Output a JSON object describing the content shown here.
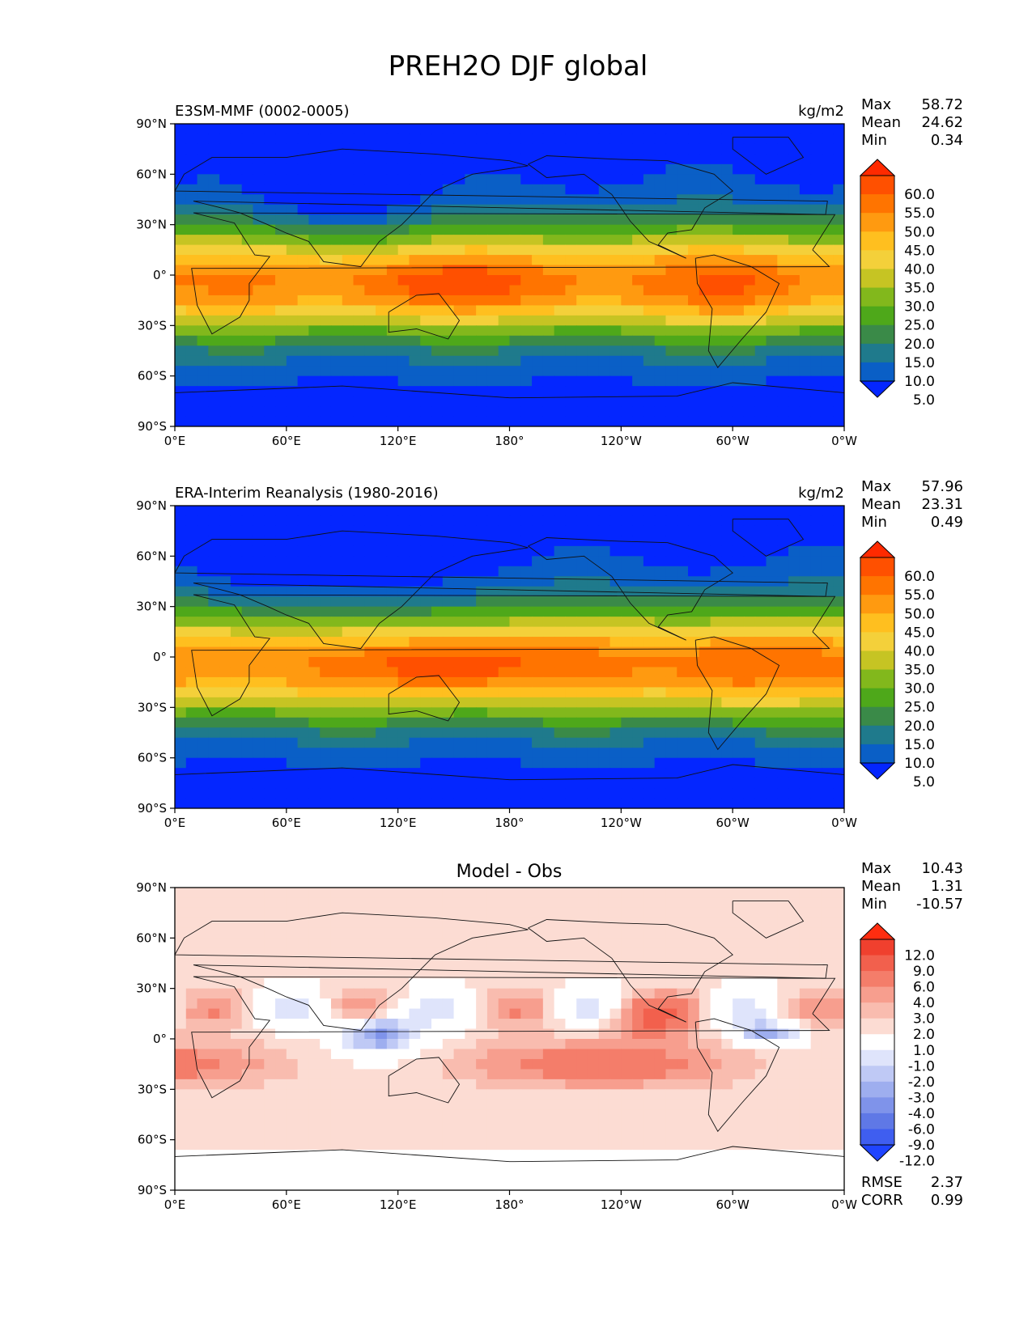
{
  "figure_title": "PREH2O DJF global",
  "chart_data": [
    {
      "type": "heatmap",
      "title": "E3SM-MMF (0002-0005)",
      "units": "kg/m2",
      "stats": [
        {
          "label": "Max",
          "value": "58.72"
        },
        {
          "label": "Mean",
          "value": "24.62"
        },
        {
          "label": "Min",
          "value": "0.34"
        }
      ],
      "xticks": [
        "0°E",
        "60°E",
        "120°E",
        "180°",
        "120°W",
        "60°W",
        "0°W"
      ],
      "yticks": [
        "90°N",
        "60°N",
        "30°N",
        "0°",
        "30°S",
        "60°S",
        "90°S"
      ],
      "xlim": [
        0,
        360
      ],
      "ylim": [
        -90,
        90
      ],
      "colorbar": {
        "labels": [
          "60.0",
          "55.0",
          "50.0",
          "45.0",
          "40.0",
          "35.0",
          "30.0",
          "25.0",
          "20.0",
          "15.0",
          "10.0",
          "5.0"
        ],
        "colors": [
          "#ff2a00",
          "#ff5000",
          "#ff7400",
          "#ff9a10",
          "#ffbf1f",
          "#f4d03a",
          "#c6c423",
          "#82b81c",
          "#4ea81a",
          "#3a8a48",
          "#1f7a8c",
          "#0a5fc6",
          "#0426ff"
        ]
      }
    },
    {
      "type": "heatmap",
      "title": "ERA-Interim Reanalysis (1980-2016)",
      "units": "kg/m2",
      "stats": [
        {
          "label": "Max",
          "value": "57.96"
        },
        {
          "label": "Mean",
          "value": "23.31"
        },
        {
          "label": "Min",
          "value": "0.49"
        }
      ],
      "xticks": [
        "0°E",
        "60°E",
        "120°E",
        "180°",
        "120°W",
        "60°W",
        "0°W"
      ],
      "yticks": [
        "90°N",
        "60°N",
        "30°N",
        "0°",
        "30°S",
        "60°S",
        "90°S"
      ],
      "xlim": [
        0,
        360
      ],
      "ylim": [
        -90,
        90
      ],
      "colorbar": {
        "labels": [
          "60.0",
          "55.0",
          "50.0",
          "45.0",
          "40.0",
          "35.0",
          "30.0",
          "25.0",
          "20.0",
          "15.0",
          "10.0",
          "5.0"
        ],
        "colors": [
          "#ff2a00",
          "#ff5000",
          "#ff7400",
          "#ff9a10",
          "#ffbf1f",
          "#f4d03a",
          "#c6c423",
          "#82b81c",
          "#4ea81a",
          "#3a8a48",
          "#1f7a8c",
          "#0a5fc6",
          "#0426ff"
        ]
      }
    },
    {
      "type": "heatmap",
      "title": "Model - Obs",
      "stats": [
        {
          "label": "Max",
          "value": "10.43"
        },
        {
          "label": "Mean",
          "value": "1.31"
        },
        {
          "label": "Min",
          "value": "-10.57"
        }
      ],
      "metrics": [
        {
          "label": "RMSE",
          "value": "2.37"
        },
        {
          "label": "CORR",
          "value": "0.99"
        }
      ],
      "xticks": [
        "0°E",
        "60°E",
        "120°E",
        "180°",
        "120°W",
        "60°W",
        "0°W"
      ],
      "yticks": [
        "90°N",
        "60°N",
        "30°N",
        "0°",
        "30°S",
        "60°S",
        "90°S"
      ],
      "xlim": [
        0,
        360
      ],
      "ylim": [
        -90,
        90
      ],
      "colorbar": {
        "labels": [
          "12.0",
          "9.0",
          "6.0",
          "4.0",
          "3.0",
          "2.0",
          "1.0",
          "-1.0",
          "-2.0",
          "-3.0",
          "-4.0",
          "-6.0",
          "-9.0",
          "-12.0"
        ],
        "colors": [
          "#ff2d10",
          "#f0402e",
          "#f2604d",
          "#f47d6a",
          "#f79e8e",
          "#f9bcaf",
          "#fcdcd3",
          "#ffffff",
          "#dfe4fb",
          "#bfc9f5",
          "#9eaeef",
          "#7f93ea",
          "#5f78e6",
          "#3f5ef0",
          "#1f44ff"
        ]
      }
    }
  ]
}
